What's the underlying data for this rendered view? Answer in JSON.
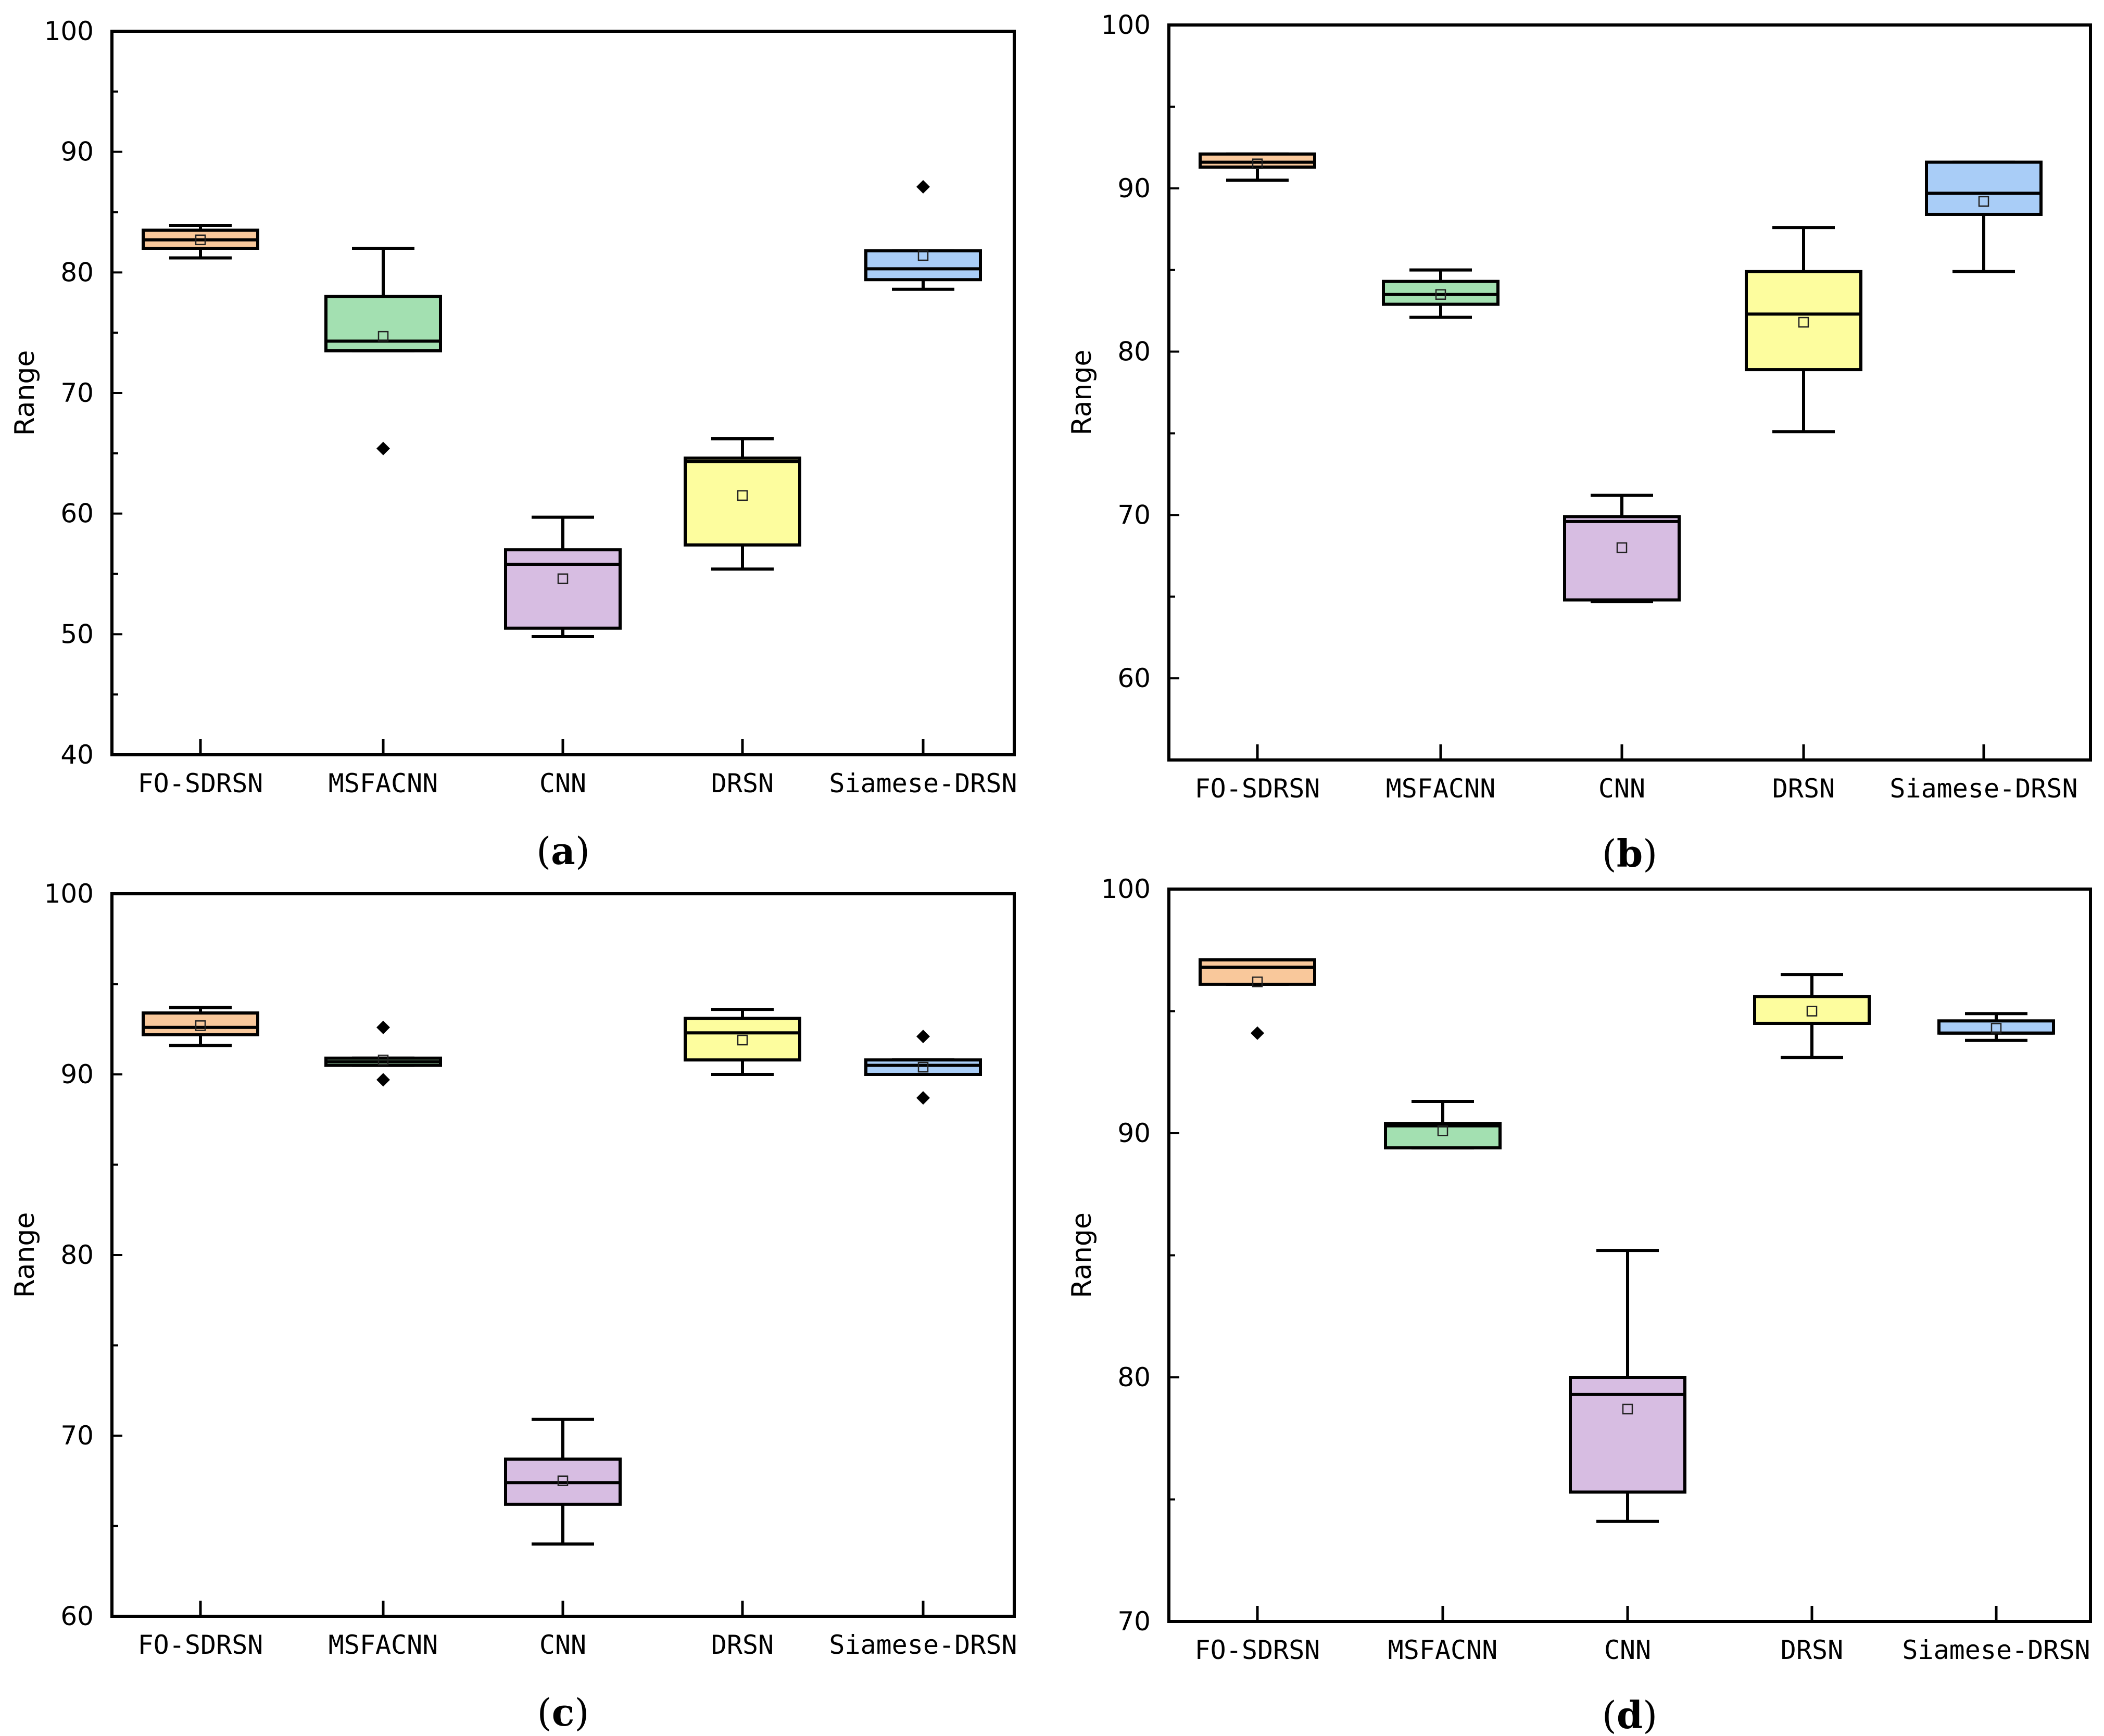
{
  "chart_data": [
    {
      "type": "boxplot",
      "panel_label": "a",
      "ylabel": "Range",
      "ylim": [
        40,
        100
      ],
      "yticks": [
        40,
        50,
        60,
        70,
        80,
        90,
        100
      ],
      "categories": [
        "FO-SDRSN",
        "MSFACNN",
        "CNN",
        "DRSN",
        "Siamese-DRSN"
      ],
      "colors": [
        "#f9c89b",
        "#a3e0b1",
        "#d7bde2",
        "#fdfd9e",
        "#a9cdf7"
      ],
      "boxes": [
        {
          "whisker_low": 81.2,
          "q1": 82.0,
          "median": 82.7,
          "q3": 83.5,
          "whisker_high": 83.9,
          "mean": 82.7,
          "outliers": []
        },
        {
          "whisker_low": 73.5,
          "q1": 73.5,
          "median": 74.3,
          "q3": 78.0,
          "whisker_high": 82.0,
          "mean": 74.7,
          "outliers": [
            65.4
          ]
        },
        {
          "whisker_low": 49.8,
          "q1": 50.5,
          "median": 55.8,
          "q3": 57.0,
          "whisker_high": 59.7,
          "mean": 54.6,
          "outliers": []
        },
        {
          "whisker_low": 55.4,
          "q1": 57.4,
          "median": 64.3,
          "q3": 64.6,
          "whisker_high": 66.2,
          "mean": 61.5,
          "outliers": []
        },
        {
          "whisker_low": 78.6,
          "q1": 79.4,
          "median": 80.3,
          "q3": 81.8,
          "whisker_high": 81.8,
          "mean": 81.4,
          "outliers": [
            87.1
          ]
        }
      ]
    },
    {
      "type": "boxplot",
      "panel_label": "b",
      "ylabel": "Range",
      "ylim": [
        55,
        100
      ],
      "yticks": [
        60,
        70,
        80,
        90,
        100
      ],
      "categories": [
        "FO-SDRSN",
        "MSFACNN",
        "CNN",
        "DRSN",
        "Siamese-DRSN"
      ],
      "colors": [
        "#f9c89b",
        "#a3e0b1",
        "#d7bde2",
        "#fdfd9e",
        "#a9cdf7"
      ],
      "boxes": [
        {
          "whisker_low": 90.5,
          "q1": 91.3,
          "median": 91.6,
          "q3": 92.1,
          "whisker_high": 92.1,
          "mean": 91.5,
          "outliers": []
        },
        {
          "whisker_low": 82.1,
          "q1": 82.9,
          "median": 83.5,
          "q3": 84.3,
          "whisker_high": 85.0,
          "mean": 83.5,
          "outliers": []
        },
        {
          "whisker_low": 64.7,
          "q1": 64.8,
          "median": 69.6,
          "q3": 69.9,
          "whisker_high": 71.2,
          "mean": 68.0,
          "outliers": []
        },
        {
          "whisker_low": 75.1,
          "q1": 78.9,
          "median": 82.3,
          "q3": 84.9,
          "whisker_high": 87.6,
          "mean": 81.8,
          "outliers": []
        },
        {
          "whisker_low": 84.9,
          "q1": 88.4,
          "median": 89.7,
          "q3": 91.6,
          "whisker_high": 91.6,
          "mean": 89.2,
          "outliers": []
        }
      ]
    },
    {
      "type": "boxplot",
      "panel_label": "c",
      "ylabel": "Range",
      "ylim": [
        60,
        100
      ],
      "yticks": [
        60,
        70,
        80,
        90,
        100
      ],
      "categories": [
        "FO-SDRSN",
        "MSFACNN",
        "CNN",
        "DRSN",
        "Siamese-DRSN"
      ],
      "colors": [
        "#f9c89b",
        "#a3e0b1",
        "#d7bde2",
        "#fdfd9e",
        "#a9cdf7"
      ],
      "boxes": [
        {
          "whisker_low": 91.6,
          "q1": 92.2,
          "median": 92.6,
          "q3": 93.4,
          "whisker_high": 93.7,
          "mean": 92.7,
          "outliers": []
        },
        {
          "whisker_low": 90.5,
          "q1": 90.5,
          "median": 90.7,
          "q3": 90.9,
          "whisker_high": 90.9,
          "mean": 90.8,
          "outliers": [
            92.6,
            89.7
          ]
        },
        {
          "whisker_low": 64.0,
          "q1": 66.2,
          "median": 67.4,
          "q3": 68.7,
          "whisker_high": 70.9,
          "mean": 67.5,
          "outliers": []
        },
        {
          "whisker_low": 90.0,
          "q1": 90.8,
          "median": 92.3,
          "q3": 93.1,
          "whisker_high": 93.6,
          "mean": 91.9,
          "outliers": []
        },
        {
          "whisker_low": 90.0,
          "q1": 90.0,
          "median": 90.5,
          "q3": 90.8,
          "whisker_high": 90.8,
          "mean": 90.4,
          "outliers": [
            92.1,
            88.7
          ]
        }
      ]
    },
    {
      "type": "boxplot",
      "panel_label": "d",
      "ylabel": "Range",
      "ylim": [
        70,
        100
      ],
      "yticks": [
        70,
        80,
        90,
        100
      ],
      "categories": [
        "FO-SDRSN",
        "MSFACNN",
        "CNN",
        "DRSN",
        "Siamese-DRSN"
      ],
      "colors": [
        "#f9c89b",
        "#a3e0b1",
        "#d7bde2",
        "#fdfd9e",
        "#a9cdf7"
      ],
      "boxes": [
        {
          "whisker_low": 96.1,
          "q1": 96.1,
          "median": 96.8,
          "q3": 97.1,
          "whisker_high": 97.1,
          "mean": 96.2,
          "outliers": [
            94.1
          ]
        },
        {
          "whisker_low": 89.4,
          "q1": 89.4,
          "median": 90.3,
          "q3": 90.4,
          "whisker_high": 91.3,
          "mean": 90.1,
          "outliers": []
        },
        {
          "whisker_low": 74.1,
          "q1": 75.3,
          "median": 79.3,
          "q3": 80.0,
          "whisker_high": 85.2,
          "mean": 78.7,
          "outliers": []
        },
        {
          "whisker_low": 93.1,
          "q1": 94.5,
          "median": 94.5,
          "q3": 95.6,
          "whisker_high": 96.5,
          "mean": 95.0,
          "outliers": []
        },
        {
          "whisker_low": 93.8,
          "q1": 94.1,
          "median": 94.1,
          "q3": 94.6,
          "whisker_high": 94.9,
          "mean": 94.3,
          "outliers": []
        }
      ]
    }
  ]
}
